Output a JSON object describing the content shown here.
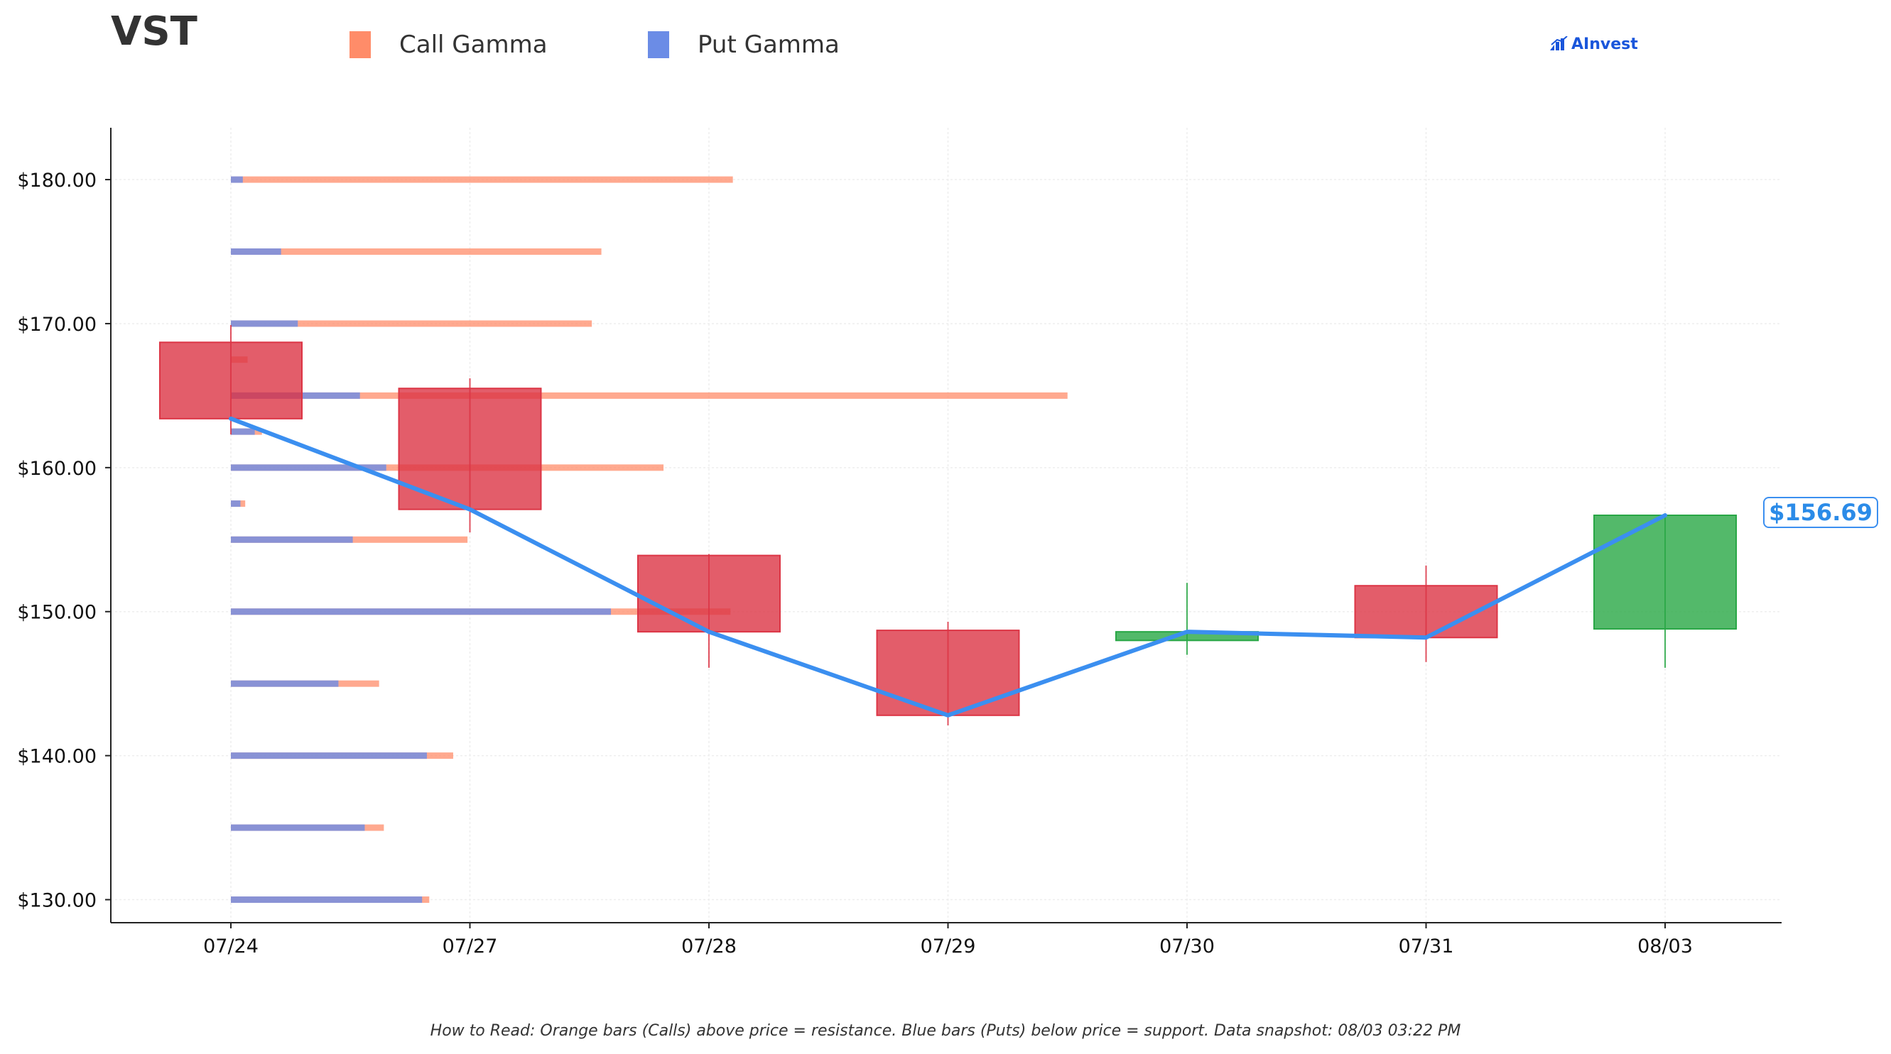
{
  "header": {
    "ticker": "VST",
    "brand": "AInvest",
    "brand_icon": "bar-chart-logo-icon"
  },
  "legend": {
    "items": [
      {
        "label": "Call Gamma",
        "color": "#ff8c69"
      },
      {
        "label": "Put Gamma",
        "color": "#6b8ce6"
      }
    ]
  },
  "price_tag": {
    "label": "$156.69",
    "value": 156.69,
    "color": "#3b8ff0"
  },
  "footnote": "How to Read: Orange bars (Calls) above price = resistance. Blue bars (Puts) below price = support. Data snapshot: 08/03 03:22 PM",
  "chart_data": {
    "type": "candlestick",
    "categories": [
      "07/24",
      "07/27",
      "07/28",
      "07/29",
      "07/30",
      "07/31",
      "08/03"
    ],
    "y_ticks": [
      130,
      140,
      150,
      160,
      170,
      180
    ],
    "y_tick_labels": [
      "$130.00",
      "$140.00",
      "$150.00",
      "$160.00",
      "$170.00",
      "$180.00"
    ],
    "ylim": [
      128.4,
      183.6
    ],
    "grid": true,
    "legend_position": "top",
    "colors": {
      "down": "#dc3545",
      "up": "#28a745",
      "close_line": "#3b8ff0",
      "call_gamma": "#ff8c69",
      "put_gamma": "#6b8ce6"
    },
    "candles": [
      {
        "date": "07/24",
        "open": 168.7,
        "high": 169.9,
        "low": 162.3,
        "close": 163.4
      },
      {
        "date": "07/27",
        "open": 165.5,
        "high": 166.2,
        "low": 155.5,
        "close": 157.1
      },
      {
        "date": "07/28",
        "open": 153.9,
        "high": 154.0,
        "low": 146.1,
        "close": 148.6
      },
      {
        "date": "07/29",
        "open": 148.7,
        "high": 149.3,
        "low": 142.1,
        "close": 142.8
      },
      {
        "date": "07/30",
        "open": 148.0,
        "high": 152.0,
        "low": 147.0,
        "close": 148.6
      },
      {
        "date": "07/31",
        "open": 151.8,
        "high": 153.2,
        "low": 146.5,
        "close": 148.2
      },
      {
        "date": "08/03",
        "open": 148.8,
        "high": 156.8,
        "low": 146.1,
        "close": 156.69
      }
    ],
    "close_line": [
      163.4,
      157.1,
      148.6,
      142.8,
      148.6,
      148.2,
      156.69
    ],
    "gamma_unit_note": "x_extent in category index units from 07/24 axis",
    "gamma_bars": [
      {
        "strike": 180.0,
        "put_extent": 0.05,
        "call_extent": 2.1
      },
      {
        "strike": 175.0,
        "put_extent": 0.21,
        "call_extent": 1.55
      },
      {
        "strike": 170.0,
        "put_extent": 0.28,
        "call_extent": 1.51
      },
      {
        "strike": 167.5,
        "put_extent": 0.0,
        "call_extent": 0.07
      },
      {
        "strike": 165.0,
        "put_extent": 0.54,
        "call_extent": 3.5
      },
      {
        "strike": 162.5,
        "put_extent": 0.1,
        "call_extent": 0.13
      },
      {
        "strike": 160.0,
        "put_extent": 0.65,
        "call_extent": 1.81
      },
      {
        "strike": 157.5,
        "put_extent": 0.04,
        "call_extent": 0.06
      },
      {
        "strike": 155.0,
        "put_extent": 0.51,
        "call_extent": 0.99
      },
      {
        "strike": 150.0,
        "put_extent": 1.59,
        "call_extent": 2.09
      },
      {
        "strike": 145.0,
        "put_extent": 0.45,
        "call_extent": 0.62
      },
      {
        "strike": 140.0,
        "put_extent": 0.82,
        "call_extent": 0.93
      },
      {
        "strike": 135.0,
        "put_extent": 0.56,
        "call_extent": 0.64
      },
      {
        "strike": 130.0,
        "put_extent": 0.8,
        "call_extent": 0.83
      }
    ]
  }
}
